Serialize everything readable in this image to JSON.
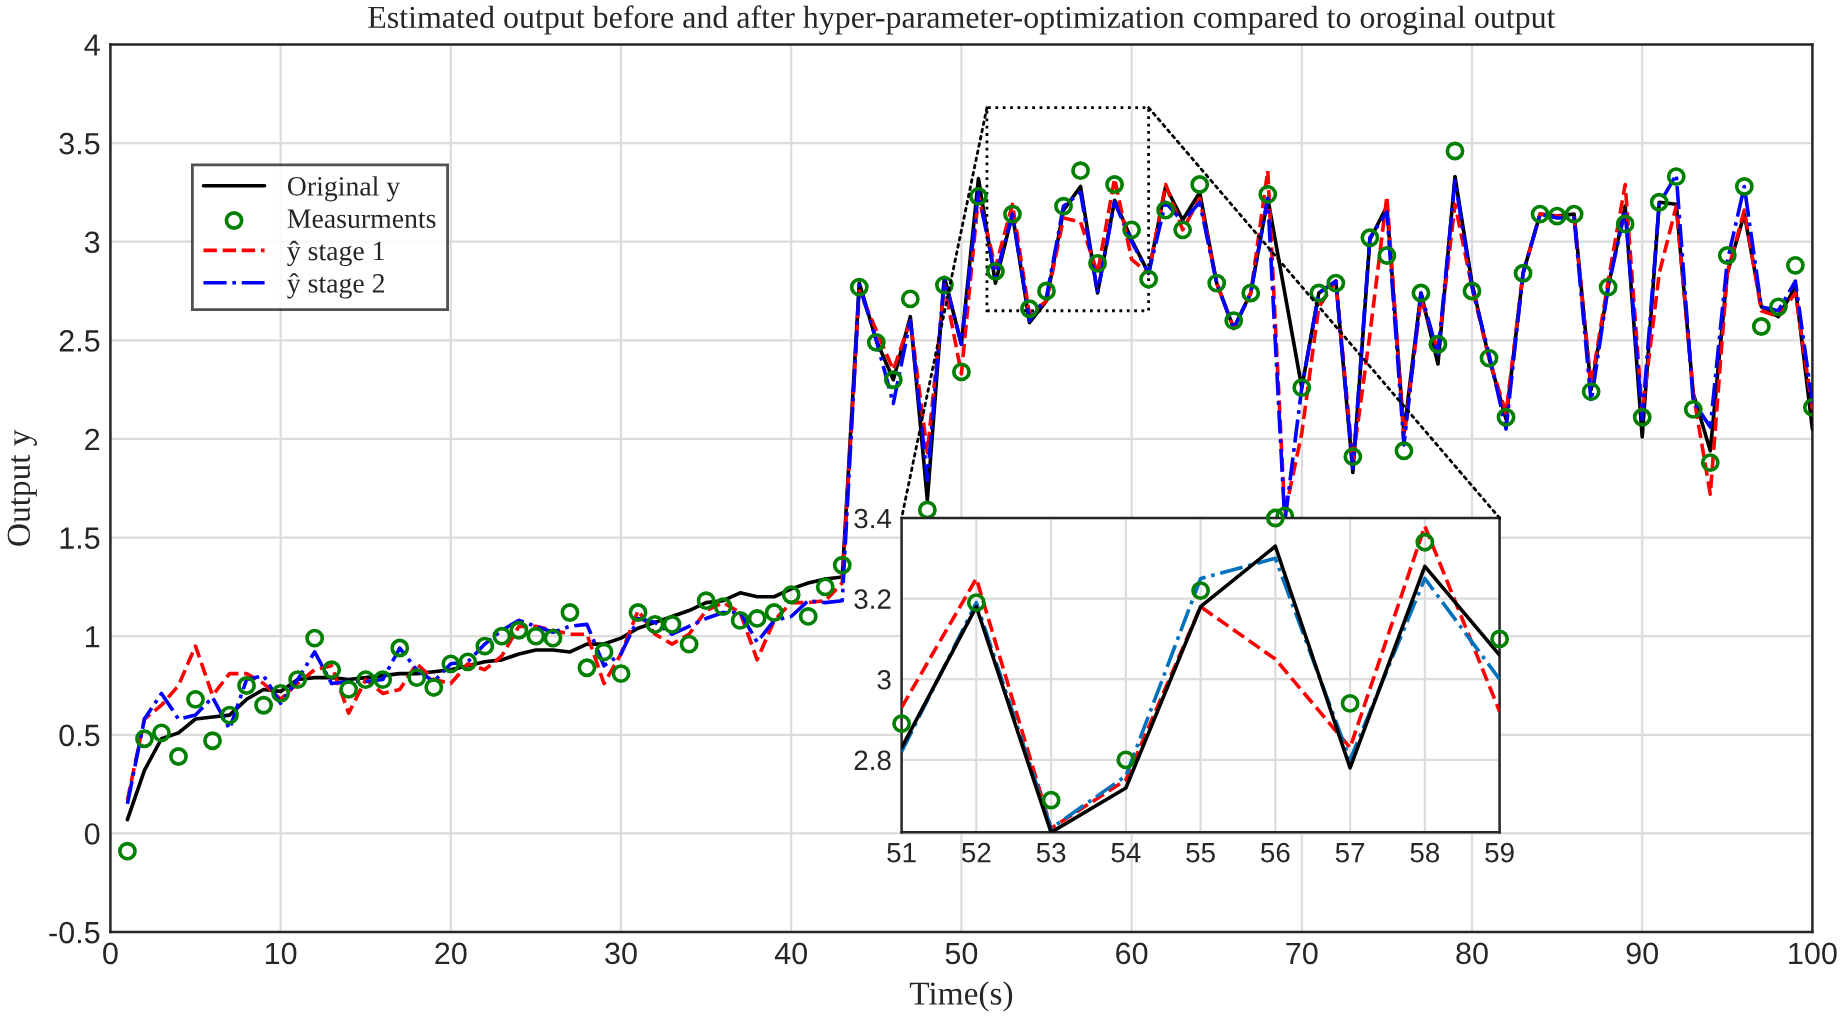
{
  "chart_data": [
    {
      "type": "line",
      "title": "Estimated output before and after hyper-parameter-optimization compared to oroginal output",
      "xlabel": "Time(s)",
      "ylabel": "Output y",
      "x": [
        1,
        2,
        3,
        4,
        5,
        6,
        7,
        8,
        9,
        10,
        11,
        12,
        13,
        14,
        15,
        16,
        17,
        18,
        19,
        20,
        21,
        22,
        23,
        24,
        25,
        26,
        27,
        28,
        29,
        30,
        31,
        32,
        33,
        34,
        35,
        36,
        37,
        38,
        39,
        40,
        41,
        42,
        43,
        44,
        45,
        46,
        47,
        48,
        49,
        50,
        51,
        52,
        53,
        54,
        55,
        56,
        57,
        58,
        59,
        60,
        61,
        62,
        63,
        64,
        65,
        66,
        67,
        68,
        69,
        70,
        71,
        72,
        73,
        74,
        75,
        76,
        77,
        78,
        79,
        80,
        81,
        82,
        83,
        84,
        85,
        86,
        87,
        88,
        89,
        90,
        91,
        92,
        93,
        94,
        95,
        96,
        97,
        98,
        99,
        100
      ],
      "xlim": [
        0,
        100
      ],
      "xticks": [
        0,
        10,
        20,
        30,
        40,
        50,
        60,
        70,
        80,
        90,
        100
      ],
      "ylim": [
        -0.5,
        4
      ],
      "yticks": [
        -0.5,
        0,
        0.5,
        1,
        1.5,
        2,
        2.5,
        3,
        3.5,
        4
      ],
      "grid": true,
      "legend": "top left",
      "series": [
        {
          "name": "Original y",
          "line_style": "solid",
          "color": "#000000",
          "values": [
            0.07,
            0.32,
            0.48,
            0.51,
            0.58,
            0.59,
            0.6,
            0.68,
            0.73,
            0.72,
            0.78,
            0.79,
            0.79,
            0.78,
            0.79,
            0.8,
            0.81,
            0.81,
            0.82,
            0.83,
            0.85,
            0.87,
            0.88,
            0.91,
            0.93,
            0.93,
            0.92,
            0.96,
            0.96,
            0.99,
            1.04,
            1.07,
            1.1,
            1.13,
            1.17,
            1.18,
            1.22,
            1.2,
            1.2,
            1.24,
            1.27,
            1.29,
            1.3,
            2.79,
            2.5,
            2.3,
            2.62,
            1.69,
            2.82,
            2.48,
            3.32,
            2.79,
            3.14,
            2.59,
            2.7,
            3.16,
            3.28,
            2.74,
            3.21,
            3.01,
            2.84,
            3.28,
            3.11,
            3.25,
            2.79,
            2.56,
            2.74,
            3.22,
            null,
            2.26,
            2.74,
            2.8,
            1.83,
            3.01,
            3.18,
            2.03,
            2.74,
            2.38,
            3.33,
            2.79,
            2.41,
            2.1,
            2.84,
            3.14,
            3.13,
            3.14,
            2.25,
            2.77,
            3.18,
            2.01,
            3.2,
            3.19,
            2.23,
            1.94,
            2.84,
            3.14,
            2.67,
            2.62,
            2.77,
            2.05
          ]
        },
        {
          "name": "Measurments",
          "type": "scatter",
          "marker": "circle",
          "color": "#008000",
          "values": [
            -0.09,
            0.48,
            0.51,
            0.39,
            0.68,
            0.47,
            0.6,
            0.75,
            0.65,
            0.71,
            0.78,
            0.99,
            0.83,
            0.73,
            0.78,
            0.78,
            0.94,
            0.79,
            0.74,
            0.86,
            0.87,
            0.95,
            1.0,
            1.03,
            1.0,
            0.99,
            1.12,
            0.84,
            0.92,
            0.81,
            1.12,
            1.06,
            1.06,
            0.96,
            1.18,
            1.15,
            1.08,
            1.09,
            1.12,
            1.21,
            1.1,
            1.25,
            1.36,
            2.77,
            2.49,
            2.3,
            2.71,
            1.64,
            2.78,
            2.34,
            3.23,
            2.85,
            3.14,
            2.66,
            2.75,
            3.18,
            3.36,
            2.89,
            3.29,
            3.06,
            2.81,
            3.16,
            3.06,
            3.29,
            2.79,
            2.6,
            2.74,
            3.24,
            1.61,
            2.26,
            2.74,
            2.79,
            1.91,
            3.02,
            2.93,
            1.94,
            2.74,
            2.48,
            3.46,
            2.75,
            2.41,
            2.11,
            2.84,
            3.14,
            3.13,
            3.14,
            2.24,
            2.77,
            3.09,
            2.11,
            3.2,
            3.33,
            2.15,
            1.88,
            2.93,
            3.28,
            2.57,
            2.67,
            2.88,
            2.16
          ]
        },
        {
          "name": "ŷ stage 1",
          "line_style": "dashed",
          "color": "#ff0000",
          "values": [
            0.17,
            0.58,
            0.65,
            0.75,
            0.95,
            0.7,
            0.81,
            0.81,
            0.76,
            0.68,
            0.76,
            0.83,
            0.85,
            0.61,
            0.78,
            0.71,
            0.73,
            0.86,
            0.78,
            0.76,
            0.86,
            0.83,
            0.9,
            1.05,
            1.05,
            1.03,
            1.01,
            1.01,
            0.76,
            0.91,
            1.13,
            1.01,
            0.96,
            1.01,
            1.13,
            1.17,
            1.12,
            0.88,
            1.08,
            1.17,
            1.17,
            1.18,
            1.27,
            2.75,
            2.55,
            2.35,
            2.6,
            1.93,
            2.78,
            2.33,
            3.23,
            2.87,
            3.19,
            2.63,
            2.7,
            3.12,
            3.1,
            2.84,
            3.32,
            2.91,
            2.84,
            3.29,
            3.06,
            3.22,
            2.79,
            2.56,
            2.74,
            3.36,
            1.62,
            2.03,
            2.67,
            2.8,
            1.89,
            2.53,
            3.23,
            2.0,
            2.71,
            2.45,
            3.19,
            2.77,
            2.41,
            2.13,
            2.84,
            3.14,
            3.13,
            3.12,
            2.27,
            2.8,
            3.29,
            2.13,
            2.84,
            3.18,
            2.23,
            1.72,
            2.84,
            3.16,
            2.65,
            2.62,
            2.74,
            2.15
          ]
        },
        {
          "name": "ŷ stage 2",
          "line_style": "dashdot",
          "color": "#0000ff",
          "values": [
            0.15,
            0.58,
            0.71,
            0.58,
            0.6,
            0.69,
            0.53,
            0.78,
            0.8,
            0.66,
            0.78,
            0.92,
            0.76,
            0.77,
            0.77,
            0.78,
            0.94,
            0.83,
            0.77,
            0.86,
            0.87,
            0.96,
            1.03,
            1.08,
            1.05,
            1.02,
            1.05,
            1.06,
            0.85,
            0.91,
            1.09,
            1.07,
            1.01,
            1.05,
            1.09,
            1.12,
            1.12,
            0.97,
            1.08,
            1.1,
            1.18,
            1.17,
            1.18,
            2.78,
            2.5,
            2.18,
            2.6,
            1.79,
            2.82,
            2.48,
            3.25,
            2.82,
            3.14,
            2.6,
            2.72,
            3.18,
            3.25,
            2.74,
            3.2,
            3.0,
            2.84,
            3.2,
            3.1,
            3.2,
            2.79,
            2.56,
            2.74,
            3.22,
            1.58,
            2.26,
            2.74,
            2.8,
            1.85,
            3.02,
            3.15,
            1.97,
            2.74,
            2.43,
            3.31,
            2.77,
            2.43,
            2.05,
            2.84,
            3.14,
            3.12,
            3.12,
            2.19,
            2.77,
            3.16,
            2.1,
            3.19,
            3.34,
            2.19,
            2.06,
            2.9,
            3.28,
            2.67,
            2.65,
            2.8,
            2.18
          ]
        }
      ]
    },
    {
      "type": "line",
      "x": [
        51,
        52,
        53,
        54,
        55,
        56,
        57,
        58,
        59
      ],
      "xlim": [
        51,
        59
      ],
      "xticks": [
        51,
        52,
        53,
        54,
        55,
        56,
        57,
        58,
        59
      ],
      "ylim": [
        2.62,
        3.4
      ],
      "yticks": [
        2.8,
        3,
        3.2,
        3.4
      ],
      "grid": true,
      "series": [
        {
          "type": "scatter",
          "marker": "circle",
          "color": "#008000",
          "values": [
            2.89,
            3.19,
            2.7,
            2.8,
            3.22,
            3.4,
            2.94,
            3.34,
            3.1
          ]
        },
        {
          "line_style": "dashed",
          "color": "#ff0000",
          "values": [
            2.93,
            3.25,
            2.63,
            2.75,
            3.18,
            3.05,
            2.83,
            3.38,
            2.92
          ]
        },
        {
          "line_style": "dashdot",
          "color": "#0072bd",
          "values": [
            2.82,
            3.19,
            2.63,
            2.76,
            3.25,
            3.3,
            2.8,
            3.25,
            3.0
          ]
        },
        {
          "line_style": "solid",
          "color": "#000000",
          "values": [
            2.83,
            3.18,
            2.62,
            2.73,
            3.18,
            3.33,
            2.78,
            3.28,
            3.06
          ]
        }
      ]
    }
  ]
}
